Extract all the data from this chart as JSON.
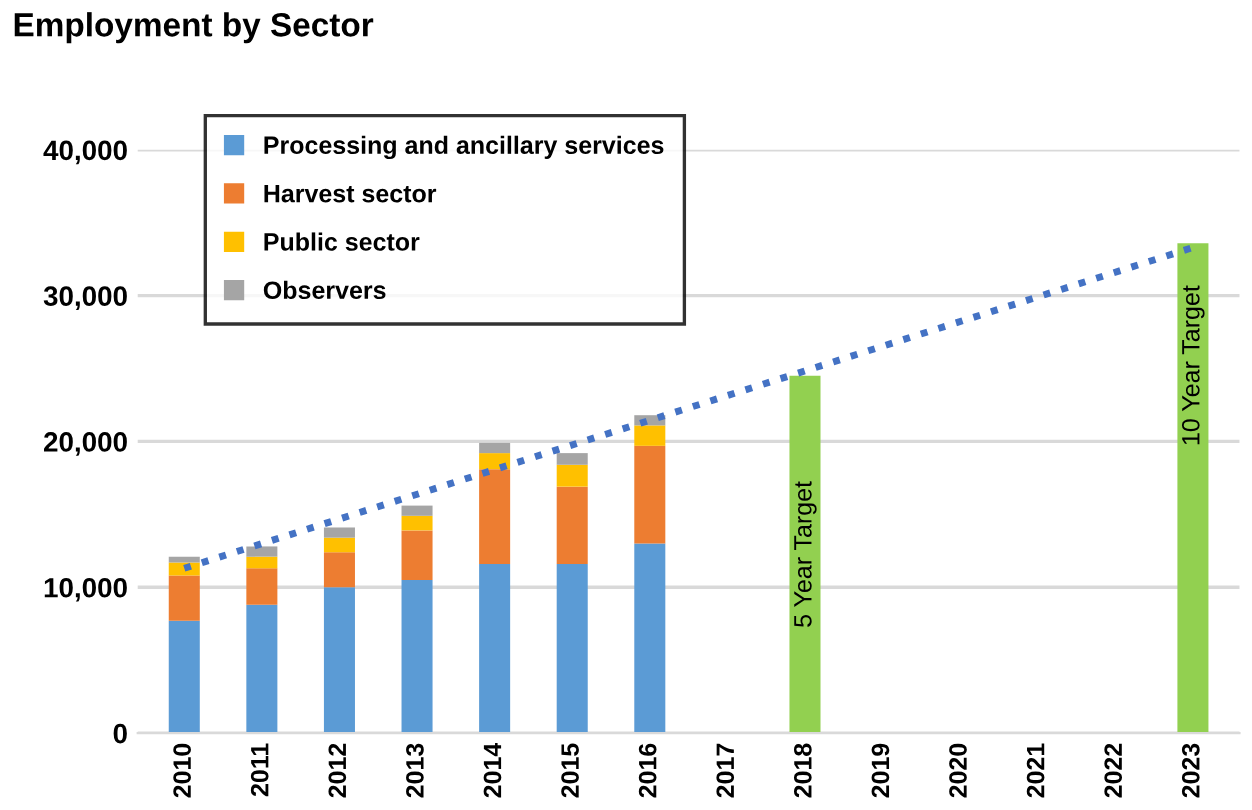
{
  "chart_data": {
    "type": "bar",
    "title": "Employment by Sector",
    "stacked": true,
    "categories": [
      "2010",
      "2011",
      "2012",
      "2013",
      "2014",
      "2015",
      "2016",
      "2017",
      "2018",
      "2019",
      "2020",
      "2021",
      "2022",
      "2023"
    ],
    "series": [
      {
        "name": "Processing and ancillary services",
        "color": "#5b9bd5",
        "values": [
          7700,
          8800,
          10000,
          10500,
          11600,
          11600,
          13000,
          null,
          null,
          null,
          null,
          null,
          null,
          null
        ]
      },
      {
        "name": "Harvest sector",
        "color": "#ed7d31",
        "values": [
          3100,
          2500,
          2400,
          3400,
          6500,
          5300,
          6700,
          null,
          null,
          null,
          null,
          null,
          null,
          null
        ]
      },
      {
        "name": "Public sector",
        "color": "#ffc000",
        "values": [
          900,
          800,
          1000,
          1000,
          1100,
          1500,
          1400,
          null,
          null,
          null,
          null,
          null,
          null,
          null
        ]
      },
      {
        "name": "Observers",
        "color": "#a5a5a5",
        "values": [
          400,
          700,
          700,
          700,
          700,
          800,
          700,
          null,
          null,
          null,
          null,
          null,
          null,
          null
        ]
      },
      {
        "color": "#92d050",
        "values": [
          null,
          null,
          null,
          null,
          null,
          null,
          null,
          null,
          24500,
          null,
          null,
          null,
          null,
          33600
        ]
      },
      {
        "type": "line",
        "color": "#4472c4",
        "line_style": "dotted",
        "values": [
          11300,
          null,
          null,
          null,
          null,
          null,
          null,
          null,
          null,
          null,
          null,
          null,
          null,
          33300
        ]
      }
    ],
    "annotations": [
      "5 Year Target",
      "10 Year Target"
    ],
    "ylim": [
      0,
      40000
    ],
    "yticks": [
      {
        "value": 0,
        "label": "0"
      },
      {
        "value": 10000,
        "label": "10,000"
      },
      {
        "value": 20000,
        "label": "20,000"
      },
      {
        "value": 30000,
        "label": "30,000"
      },
      {
        "value": 40000,
        "label": "40,000"
      }
    ],
    "grid": "y",
    "legend": "top left"
  }
}
